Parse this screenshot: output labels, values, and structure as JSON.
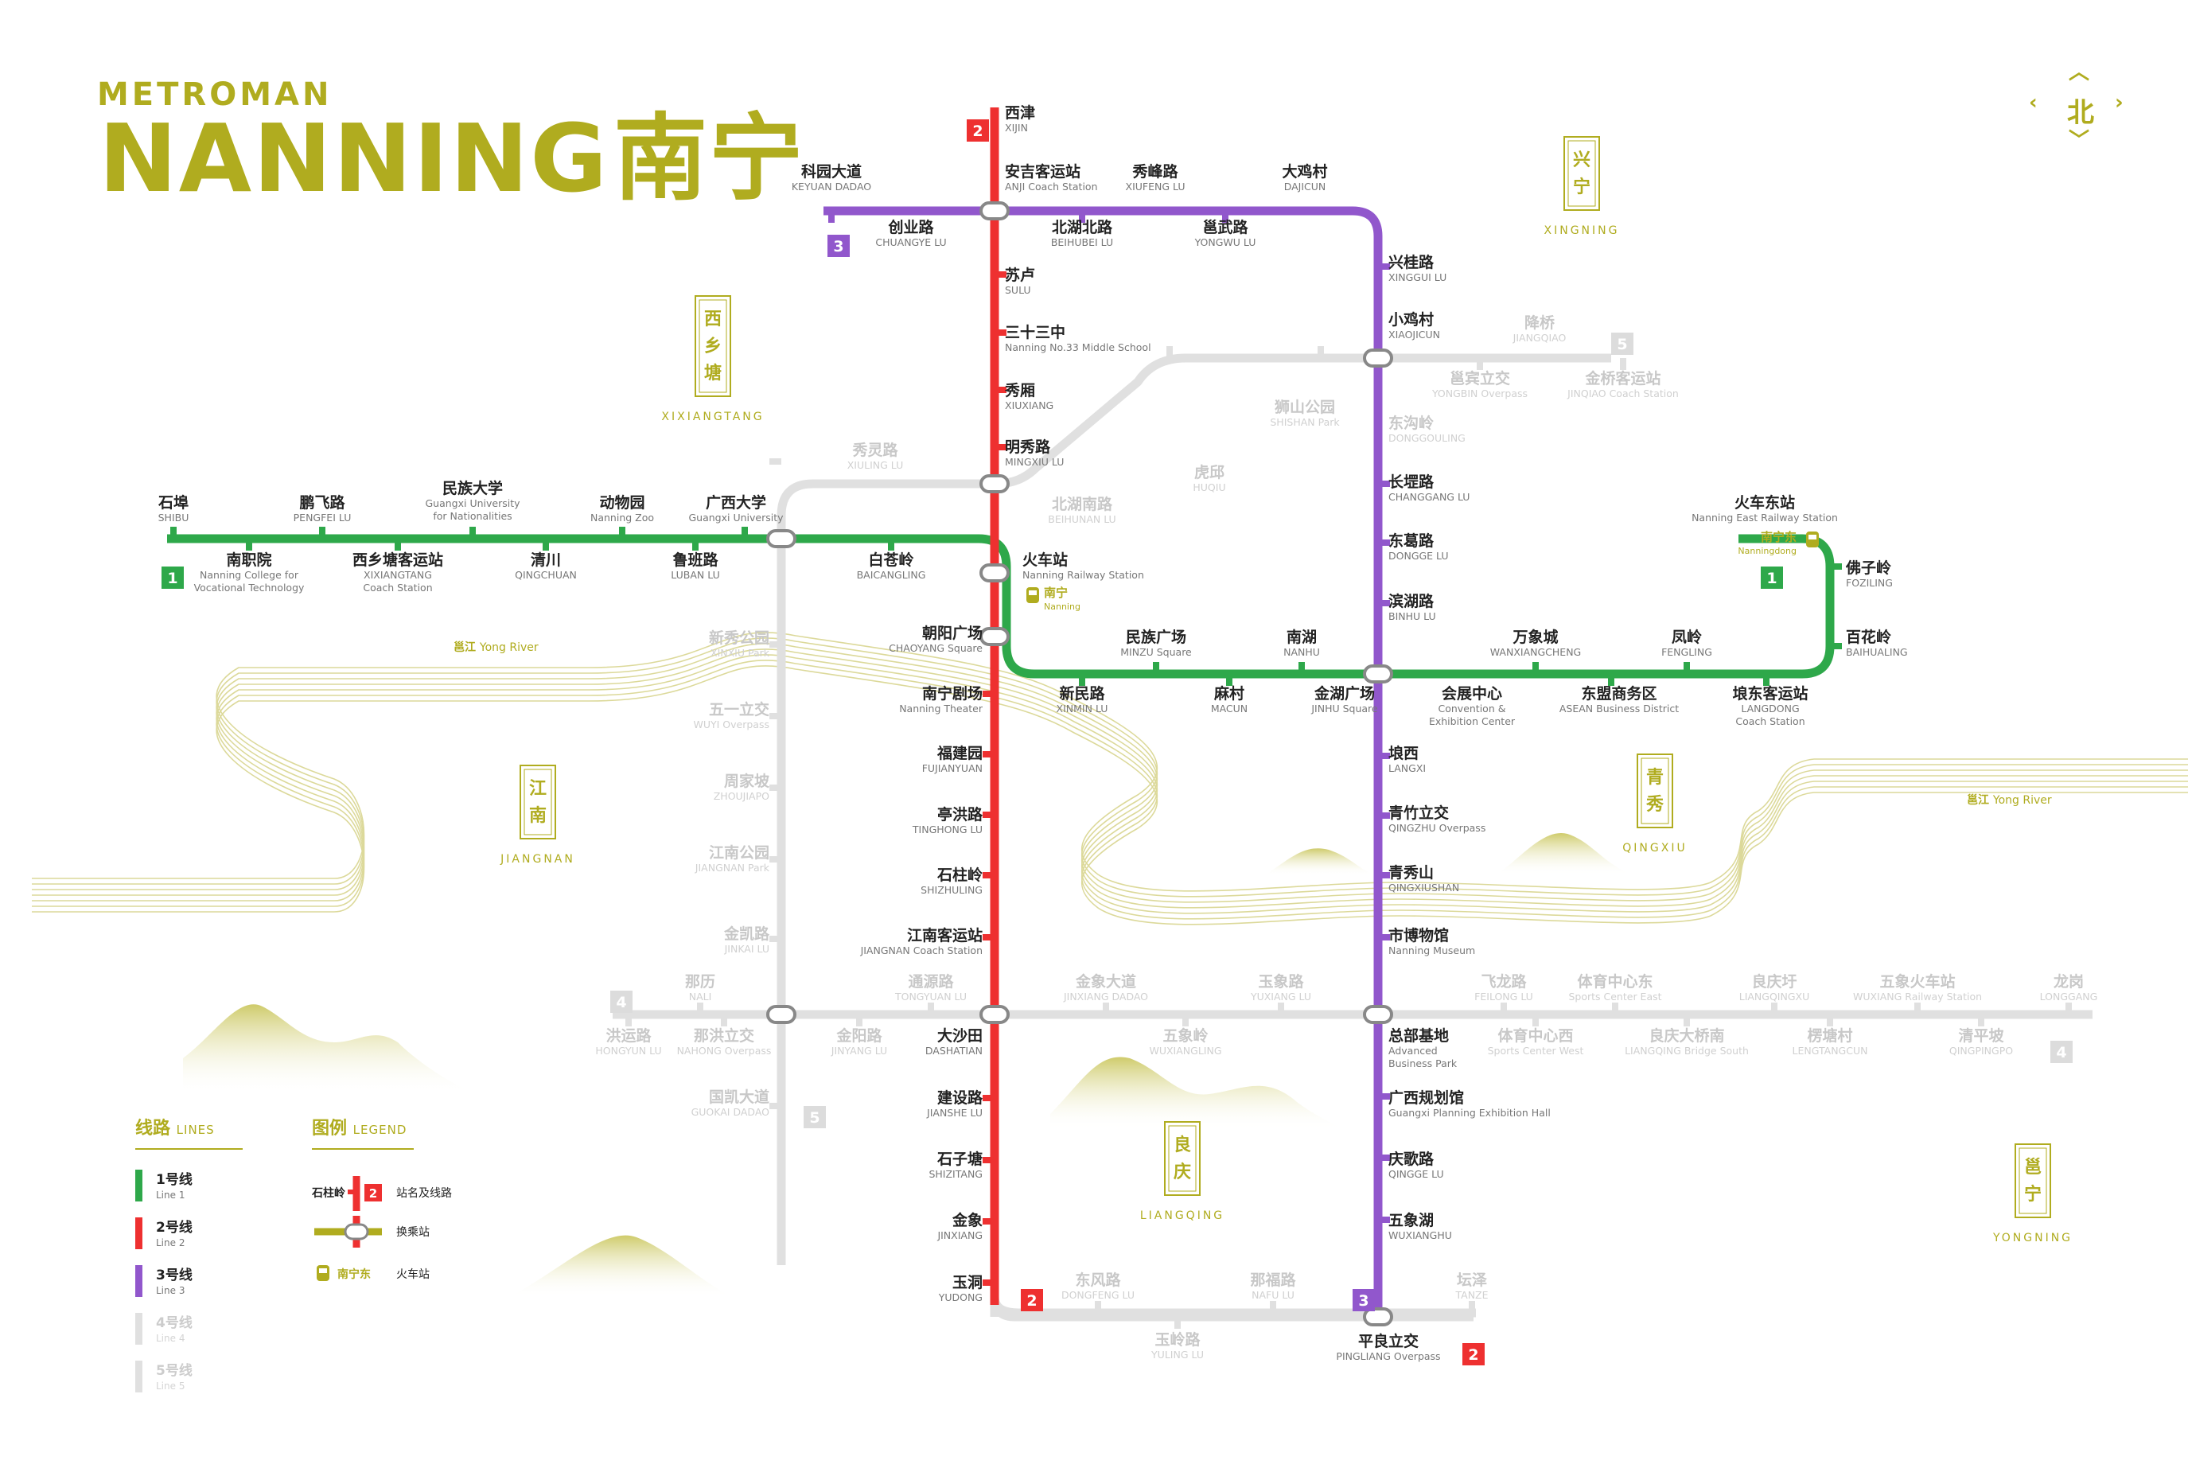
{
  "header": {
    "brand": "METROMAN",
    "city_en": "NANNING",
    "city_zh": "南宁"
  },
  "compass": {
    "label": "北"
  },
  "colors": {
    "line1": "#2ea84a",
    "line2": "#ee3030",
    "line3": "#9157cc",
    "future": "#e0e0e0",
    "accent": "#b0ac1f",
    "text": "#222222",
    "sub": "#777777"
  },
  "line_badges": [
    {
      "num": "2",
      "line": "2"
    },
    {
      "num": "3",
      "line": "3"
    },
    {
      "num": "1",
      "line": "1"
    },
    {
      "num": "1",
      "line": "1"
    },
    {
      "num": "2",
      "line": "2"
    },
    {
      "num": "3",
      "line": "3"
    },
    {
      "num": "5",
      "line": "5"
    },
    {
      "num": "4",
      "line": "4"
    },
    {
      "num": "5",
      "line": "5"
    },
    {
      "num": "4",
      "line": "4"
    },
    {
      "num": "2",
      "line": "2"
    }
  ],
  "stations": [
    {
      "zh": "西津",
      "en": [
        "XIJIN"
      ]
    },
    {
      "zh": "科园大道",
      "en": [
        "KEYUAN DADAO"
      ]
    },
    {
      "zh": "安吉客运站",
      "en": [
        "ANJI Coach Station"
      ]
    },
    {
      "zh": "秀峰路",
      "en": [
        "XIUFENG LU"
      ]
    },
    {
      "zh": "大鸡村",
      "en": [
        "DAJICUN"
      ]
    },
    {
      "zh": "创业路",
      "en": [
        "CHUANGYE LU"
      ]
    },
    {
      "zh": "北湖北路",
      "en": [
        "BEIHUBEI LU"
      ]
    },
    {
      "zh": "邕武路",
      "en": [
        "YONGWU LU"
      ]
    },
    {
      "zh": "兴桂路",
      "en": [
        "XINGGUI LU"
      ]
    },
    {
      "zh": "苏卢",
      "en": [
        "SULU"
      ]
    },
    {
      "zh": "小鸡村",
      "en": [
        "XIAOJICUN"
      ]
    },
    {
      "zh": "三十三中",
      "en": [
        "Nanning No.33 Middle School"
      ]
    },
    {
      "zh": "秀厢",
      "en": [
        "XIUXIANG"
      ]
    },
    {
      "zh": "明秀路",
      "en": [
        "MINGXIU LU"
      ]
    },
    {
      "zh": "长堽路",
      "en": [
        "CHANGGANG LU"
      ]
    },
    {
      "zh": "石埠",
      "en": [
        "SHIBU"
      ]
    },
    {
      "zh": "鹏飞路",
      "en": [
        "PENGFEI LU"
      ]
    },
    {
      "zh": "民族大学",
      "en": [
        "Guangxi University",
        "for Nationalities"
      ]
    },
    {
      "zh": "动物园",
      "en": [
        "Nanning Zoo"
      ]
    },
    {
      "zh": "广西大学",
      "en": [
        "Guangxi University"
      ]
    },
    {
      "zh": "火车东站",
      "en": [
        "Nanning East Railway Station"
      ]
    },
    {
      "zh": "东葛路",
      "en": [
        "DONGGE LU"
      ]
    },
    {
      "zh": "南职院",
      "en": [
        "Nanning College for",
        "Vocational Technology"
      ]
    },
    {
      "zh": "西乡塘客运站",
      "en": [
        "XIXIANGTANG",
        "Coach Station"
      ]
    },
    {
      "zh": "清川",
      "en": [
        "QINGCHUAN"
      ]
    },
    {
      "zh": "鲁班路",
      "en": [
        "LUBAN LU"
      ]
    },
    {
      "zh": "白苍岭",
      "en": [
        "BAICANGLING"
      ]
    },
    {
      "zh": "火车站",
      "en": [
        "Nanning Railway Station"
      ]
    },
    {
      "zh": "佛子岭",
      "en": [
        "FOZILING"
      ]
    },
    {
      "zh": "滨湖路",
      "en": [
        "BINHU LU"
      ]
    },
    {
      "zh": "朝阳广场",
      "en": [
        "CHAOYANG Square"
      ]
    },
    {
      "zh": "民族广场",
      "en": [
        "MINZU Square"
      ]
    },
    {
      "zh": "南湖",
      "en": [
        "NANHU"
      ]
    },
    {
      "zh": "万象城",
      "en": [
        "WANXIANGCHENG"
      ]
    },
    {
      "zh": "凤岭",
      "en": [
        "FENGLING"
      ]
    },
    {
      "zh": "百花岭",
      "en": [
        "BAIHUALING"
      ]
    },
    {
      "zh": "南宁剧场",
      "en": [
        "Nanning Theater"
      ]
    },
    {
      "zh": "新民路",
      "en": [
        "XINMIN LU"
      ]
    },
    {
      "zh": "麻村",
      "en": [
        "MACUN"
      ]
    },
    {
      "zh": "金湖广场",
      "en": [
        "JINHU Square"
      ]
    },
    {
      "zh": "会展中心",
      "en": [
        "Convention &",
        "Exhibition Center"
      ]
    },
    {
      "zh": "东盟商务区",
      "en": [
        "ASEAN Business District"
      ]
    },
    {
      "zh": "埌东客运站",
      "en": [
        "LANGDONG",
        "Coach Station"
      ]
    },
    {
      "zh": "福建园",
      "en": [
        "FUJIANYUAN"
      ]
    },
    {
      "zh": "埌西",
      "en": [
        "LANGXI"
      ]
    },
    {
      "zh": "亭洪路",
      "en": [
        "TINGHONG LU"
      ]
    },
    {
      "zh": "青竹立交",
      "en": [
        "QINGZHU Overpass"
      ]
    },
    {
      "zh": "石柱岭",
      "en": [
        "SHIZHULING"
      ]
    },
    {
      "zh": "青秀山",
      "en": [
        "QINGXIUSHAN"
      ]
    },
    {
      "zh": "江南客运站",
      "en": [
        "JIANGNAN Coach Station"
      ]
    },
    {
      "zh": "市博物馆",
      "en": [
        "Nanning Museum"
      ]
    },
    {
      "zh": "大沙田",
      "en": [
        "DASHATIAN"
      ]
    },
    {
      "zh": "总部基地",
      "en": [
        "Advanced",
        "Business Park"
      ]
    },
    {
      "zh": "建设路",
      "en": [
        "JIANSHE LU"
      ]
    },
    {
      "zh": "广西规划馆",
      "en": [
        "Guangxi Planning Exhibition Hall"
      ]
    },
    {
      "zh": "石子塘",
      "en": [
        "SHIZITANG"
      ]
    },
    {
      "zh": "庆歌路",
      "en": [
        "QINGGE LU"
      ]
    },
    {
      "zh": "金象",
      "en": [
        "JINXIANG"
      ]
    },
    {
      "zh": "五象湖",
      "en": [
        "WUXIANGHU"
      ]
    },
    {
      "zh": "玉洞",
      "en": [
        "YUDONG"
      ]
    },
    {
      "zh": "平良立交",
      "en": [
        "PINGLIANG Overpass"
      ]
    }
  ],
  "future_stations": [
    {
      "zh": "降桥",
      "en": [
        "JIANGQIAO"
      ]
    },
    {
      "zh": "邕宾立交",
      "en": [
        "YONGBIN Overpass"
      ]
    },
    {
      "zh": "金桥客运站",
      "en": [
        "JINQIAO Coach Station"
      ]
    },
    {
      "zh": "狮山公园",
      "en": [
        "SHISHAN Park"
      ]
    },
    {
      "zh": "东沟岭",
      "en": [
        "DONGGOULING"
      ]
    },
    {
      "zh": "秀灵路",
      "en": [
        "XIULING LU"
      ]
    },
    {
      "zh": "虎邱",
      "en": [
        "HUQIU"
      ]
    },
    {
      "zh": "北湖南路",
      "en": [
        "BEIHUNAN LU"
      ]
    },
    {
      "zh": "新秀公园",
      "en": [
        "XINXIU Park"
      ]
    },
    {
      "zh": "五一立交",
      "en": [
        "WUYI Overpass"
      ]
    },
    {
      "zh": "周家坡",
      "en": [
        "ZHOUJIAPO"
      ]
    },
    {
      "zh": "江南公园",
      "en": [
        "JIANGNAN Park"
      ]
    },
    {
      "zh": "金凯路",
      "en": [
        "JINKAI LU"
      ]
    },
    {
      "zh": "那历",
      "en": [
        "NALI"
      ]
    },
    {
      "zh": "通源路",
      "en": [
        "TONGYUAN LU"
      ]
    },
    {
      "zh": "金象大道",
      "en": [
        "JINXIANG DADAO"
      ]
    },
    {
      "zh": "玉象路",
      "en": [
        "YUXIANG LU"
      ]
    },
    {
      "zh": "飞龙路",
      "en": [
        "FEILONG LU"
      ]
    },
    {
      "zh": "体育中心东",
      "en": [
        "Sports Center East"
      ]
    },
    {
      "zh": "良庆圩",
      "en": [
        "LIANGQINGXU"
      ]
    },
    {
      "zh": "五象火车站",
      "en": [
        "WUXIANG Railway Station"
      ]
    },
    {
      "zh": "龙岗",
      "en": [
        "LONGGANG"
      ]
    },
    {
      "zh": "洪运路",
      "en": [
        "HONGYUN LU"
      ]
    },
    {
      "zh": "那洪立交",
      "en": [
        "NAHONG Overpass"
      ]
    },
    {
      "zh": "金阳路",
      "en": [
        "JINYANG LU"
      ]
    },
    {
      "zh": "五象岭",
      "en": [
        "WUXIANGLING"
      ]
    },
    {
      "zh": "体育中心西",
      "en": [
        "Sports Center West"
      ]
    },
    {
      "zh": "良庆大桥南",
      "en": [
        "LIANGQING Bridge South"
      ]
    },
    {
      "zh": "楞塘村",
      "en": [
        "LENGTANGCUN"
      ]
    },
    {
      "zh": "清平坡",
      "en": [
        "QINGPINGPO"
      ]
    },
    {
      "zh": "国凯大道",
      "en": [
        "GUOKAI DADAO"
      ]
    },
    {
      "zh": "东风路",
      "en": [
        "DONGFENG LU"
      ]
    },
    {
      "zh": "那福路",
      "en": [
        "NAFU LU"
      ]
    },
    {
      "zh": "坛泽",
      "en": [
        "TANZE"
      ]
    },
    {
      "zh": "玉岭路",
      "en": [
        "YULING LU"
      ]
    }
  ],
  "rail": [
    {
      "zh": "南宁",
      "en": "Nanning"
    },
    {
      "zh": "南宁东",
      "en": "Nanningdong"
    }
  ],
  "districts": [
    {
      "zh": [
        "西",
        "乡",
        "塘"
      ],
      "en": "XIXIANGTANG"
    },
    {
      "zh": [
        "兴",
        "宁"
      ],
      "en": "XINGNING"
    },
    {
      "zh": [
        "江",
        "南"
      ],
      "en": "JIANGNAN"
    },
    {
      "zh": [
        "青",
        "秀"
      ],
      "en": "QINGXIU"
    },
    {
      "zh": [
        "良",
        "庆"
      ],
      "en": "LIANGQING"
    },
    {
      "zh": [
        "邕",
        "宁"
      ],
      "en": "YONGNING"
    }
  ],
  "rivers": [
    {
      "zh": "邕江",
      "en": "Yong River"
    },
    {
      "zh": "邕江",
      "en": "Yong River"
    }
  ],
  "lines_panel": {
    "title_zh": "线路",
    "title_en": "LINES",
    "items": [
      {
        "zh": "1号线",
        "en": "Line 1",
        "key": "line1",
        "future": false
      },
      {
        "zh": "2号线",
        "en": "Line 2",
        "key": "line2",
        "future": false
      },
      {
        "zh": "3号线",
        "en": "Line 3",
        "key": "line3",
        "future": false
      },
      {
        "zh": "4号线",
        "en": "Line 4",
        "key": "future",
        "future": true
      },
      {
        "zh": "5号线",
        "en": "Line 5",
        "key": "future",
        "future": true
      }
    ]
  },
  "legend_panel": {
    "title_zh": "图例",
    "title_en": "LEGEND",
    "sample_station": "石柱岭",
    "sample_line": "2",
    "station_and_line": "站名及线路",
    "interchange": "换乘站",
    "sample_rail": "南宁东",
    "railway": "火车站"
  }
}
